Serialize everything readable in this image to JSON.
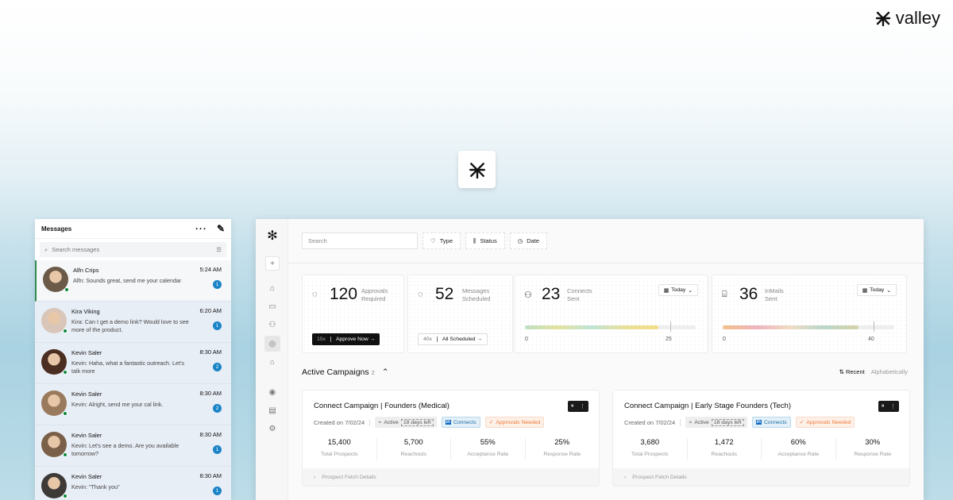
{
  "brand": {
    "name": "valley"
  },
  "messages": {
    "title": "Messages",
    "search_placeholder": "Search messages",
    "items": [
      {
        "name": "Alfn Crips",
        "text": "Alfn: Sounds great, send me your calendar",
        "time": "5:24 AM",
        "unread": "1",
        "selected": true
      },
      {
        "name": "Kira Viking",
        "text": "Kira:  Can I get a demo link? Would love to see more of the product.",
        "time": "6:20 AM",
        "unread": "1"
      },
      {
        "name": "Kevin Saler",
        "text": "Kevin:  Haha, what a fantastic outreach. Let's talk more",
        "time": "8:30 AM",
        "unread": "2"
      },
      {
        "name": "Kevin Saler",
        "text": "Kevin:  Alright, send me your cal link.",
        "time": "8:30 AM",
        "unread": "2"
      },
      {
        "name": "Kevin Saler",
        "text": "Kevin:  Let's see a demo. Are you available tomorrow?",
        "time": "8:30 AM",
        "unread": "1"
      },
      {
        "name": "Kevin Saler",
        "text": "Kevin:  \"Thank you\"",
        "time": "8:30 AM",
        "unread": "1"
      }
    ]
  },
  "toolbar": {
    "search_placeholder": "Search",
    "type": "Type",
    "status": "Status",
    "date": "Date"
  },
  "stats": {
    "approvals": {
      "value": "120",
      "label1": "Approvals",
      "label2": "Required",
      "count": "15x",
      "action": "Approve Now →"
    },
    "scheduled": {
      "value": "52",
      "label1": "Messages",
      "label2": "Scheduled",
      "count": "40x",
      "action": "All Scheduled →"
    },
    "connects": {
      "value": "23",
      "label1": "Connects",
      "label2": "Sent",
      "period": "Today",
      "min": "0",
      "max": "25",
      "progress": 0.92
    },
    "inmails": {
      "value": "36",
      "label1": "InMails",
      "label2": "Sent",
      "period": "Today",
      "min": "0",
      "max": "40",
      "progress": 0.9
    }
  },
  "campaigns": {
    "title": "Active Campaigns",
    "count": "2",
    "sort_recent": "Recent",
    "sort_alpha": "Alphabetically",
    "items": [
      {
        "title": "Connect Campaign | Founders (Medical)",
        "created": "Created on 7/02/24",
        "status": "Active",
        "days": "18 days left",
        "channel": "Connects",
        "flag": "Approvals Needed",
        "stats": [
          {
            "v": "15,400",
            "l": "Total Prospects"
          },
          {
            "v": "5,700",
            "l": "Reachouts"
          },
          {
            "v": "55%",
            "l": "Acceptance Rate"
          },
          {
            "v": "25%",
            "l": "Response Rate"
          }
        ],
        "footer": "Prospect Fetch Details"
      },
      {
        "title": "Connect Campaign | Early Stage Founders (Tech)",
        "created": "Created on 7/02/24",
        "status": "Active",
        "days": "18 days left",
        "channel": "Connects",
        "flag": "Approvals Needed",
        "stats": [
          {
            "v": "3,680",
            "l": "Total Prospects"
          },
          {
            "v": "1,472",
            "l": "Reachouts"
          },
          {
            "v": "60%",
            "l": "Acceptance Rate"
          },
          {
            "v": "30%",
            "l": "Response Rate"
          }
        ],
        "footer": "Prospect Fetch Details"
      }
    ]
  },
  "colors": {
    "accent_green": "#2f8a4f",
    "badge_blue": "#1a84c7",
    "linkedin": "#0a66c2",
    "warning": "#f07a36"
  }
}
